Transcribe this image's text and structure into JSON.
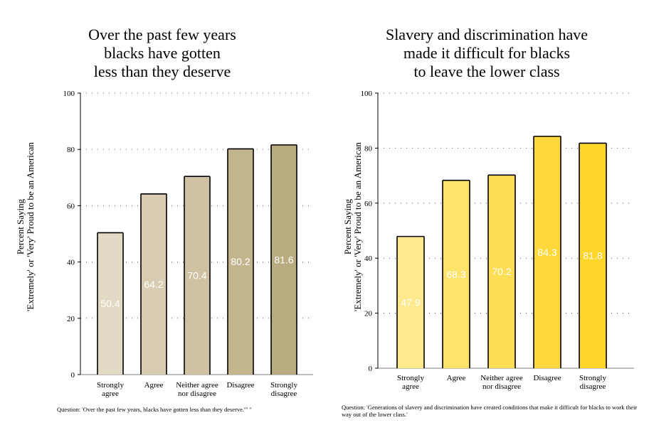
{
  "chart_data": [
    {
      "type": "bar",
      "title": "Over the past few years\nblacks have gotten\nless than they deserve",
      "ylabel": "Percent Saying\n'Extremely' or 'Very' Proud to be an American",
      "xlabel": "",
      "ylim": [
        0,
        100
      ],
      "yticks": [
        0,
        20,
        40,
        60,
        80,
        100
      ],
      "categories": [
        "Strongly\nagree",
        "Agree",
        "Neither agree\nnor disagree",
        "Disagree",
        "Strongly\ndisagree"
      ],
      "values": [
        50.4,
        64.2,
        70.4,
        80.2,
        81.6
      ],
      "value_labels": [
        "50.4",
        "64.2",
        "70.4",
        "80.2",
        "81.6"
      ],
      "colors": [
        "#e3dac5",
        "#d8cdb2",
        "#cec2a2",
        "#c3b68f",
        "#b9ab80"
      ],
      "grid": "dotted-horizontal",
      "note": "Question: 'Over the past few years, blacks have gotten less than they deserve.'\" \""
    },
    {
      "type": "bar",
      "title": "Slavery and discrimination have\nmade it difficult for blacks\nto leave the lower class",
      "ylabel": "Percent Saying\n'Extremely' or 'Very' Proud to be an American",
      "xlabel": "",
      "ylim": [
        0,
        100
      ],
      "yticks": [
        0,
        20,
        40,
        60,
        80,
        100
      ],
      "categories": [
        "Strongly\nagree",
        "Agree",
        "Neither agree\nnor disagree",
        "Disagree",
        "Strongly\ndisagree"
      ],
      "values": [
        47.9,
        68.3,
        70.2,
        84.3,
        81.8
      ],
      "value_labels": [
        "47.9",
        "68.3",
        "70.2",
        "84.3",
        "81.8"
      ],
      "colors": [
        "#ffe98c",
        "#ffe26a",
        "#ffde55",
        "#ffd93b",
        "#ffd52a"
      ],
      "grid": "dotted-horizontal",
      "note": "Question: 'Generations of slavery and discrimination have created conditions that make it difficult for blacks to work their way out of the lower class.'"
    }
  ]
}
